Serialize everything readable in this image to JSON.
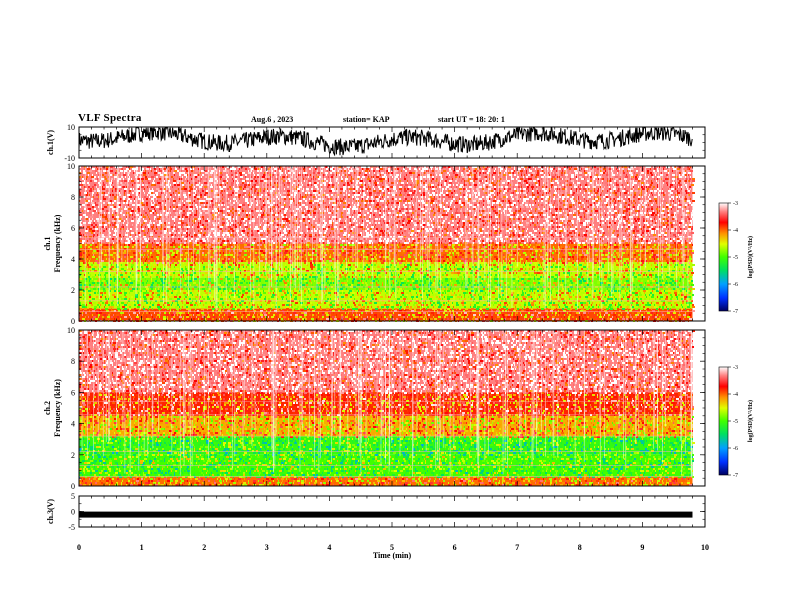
{
  "header": {
    "title": "VLF Spectra",
    "date": "Aug.6  , 2023",
    "station": "station= KAP",
    "start_ut": "start  UT  =   18: 20: 1"
  },
  "chart_data": [
    {
      "type": "line",
      "ylabel": "ch.1(V)",
      "ylim": [
        -10,
        10
      ],
      "yticks": [
        "10",
        "-10"
      ],
      "xlim": [
        0,
        10
      ],
      "description_of_values": "dense oscillating waveform, roughly between -4 and 8 V",
      "color": "#000000"
    },
    {
      "type": "heatmap",
      "ylabel": "ch.1 Frequency  (kHz)",
      "xlim": [
        0,
        10
      ],
      "ylim": [
        0,
        10
      ],
      "yticks": [
        "0",
        "2",
        "4",
        "6",
        "8",
        "10"
      ],
      "data_end_min": 9.8,
      "bands": [
        {
          "f_from": 0,
          "f_to": 0.8,
          "level": -3.9
        },
        {
          "f_from": 0.8,
          "f_to": 2.0,
          "level": -4.6
        },
        {
          "f_from": 2.0,
          "f_to": 2.8,
          "level": -4.8
        },
        {
          "f_from": 2.8,
          "f_to": 3.8,
          "level": -4.6
        },
        {
          "f_from": 3.8,
          "f_to": 5.0,
          "level": -4.0
        },
        {
          "f_from": 5.0,
          "f_to": 10,
          "level": -3.3
        }
      ],
      "colorbar": {
        "label": "log(PSD)(V²/Hz)",
        "ticks": [
          "-3",
          "-4",
          "-5",
          "-6",
          "-7"
        ],
        "range": [
          -7,
          -3
        ]
      }
    },
    {
      "type": "heatmap",
      "ylabel": "ch.2 Frequency  (kHz)",
      "xlim": [
        0,
        10
      ],
      "ylim": [
        0,
        10
      ],
      "yticks": [
        "0",
        "2",
        "4",
        "6",
        "8",
        "10"
      ],
      "data_end_min": 9.8,
      "bands": [
        {
          "f_from": 0,
          "f_to": 0.6,
          "level": -4.0
        },
        {
          "f_from": 0.6,
          "f_to": 2.0,
          "level": -5.0
        },
        {
          "f_from": 2.0,
          "f_to": 3.2,
          "level": -5.1
        },
        {
          "f_from": 3.2,
          "f_to": 4.5,
          "level": -4.2
        },
        {
          "f_from": 4.5,
          "f_to": 6.0,
          "level": -3.8
        },
        {
          "f_from": 6.0,
          "f_to": 10,
          "level": -3.3
        }
      ],
      "colorbar": {
        "label": "log(PSD)(V²/Hz)",
        "ticks": [
          "-3",
          "-4",
          "-5",
          "-6",
          "-7"
        ],
        "range": [
          -7,
          -3
        ]
      }
    },
    {
      "type": "line",
      "ylabel": "ch.3(V)",
      "ylim": [
        -5,
        5
      ],
      "yticks": [
        "5",
        "0",
        "-5"
      ],
      "xlim": [
        0,
        10
      ],
      "xlabel": "Time  (min)",
      "xticks": [
        "0",
        "1",
        "2",
        "3",
        "4",
        "5",
        "6",
        "7",
        "8",
        "9",
        "10"
      ],
      "description_of_values": "thick band near -1 V",
      "level": -1,
      "color": "#000000"
    }
  ],
  "colors": {
    "scale": [
      "#000080",
      "#0040ff",
      "#00c0ff",
      "#00ff40",
      "#80ff00",
      "#ffff00",
      "#ff8000",
      "#ff0000",
      "#ffc0c0",
      "#ffffff"
    ]
  }
}
